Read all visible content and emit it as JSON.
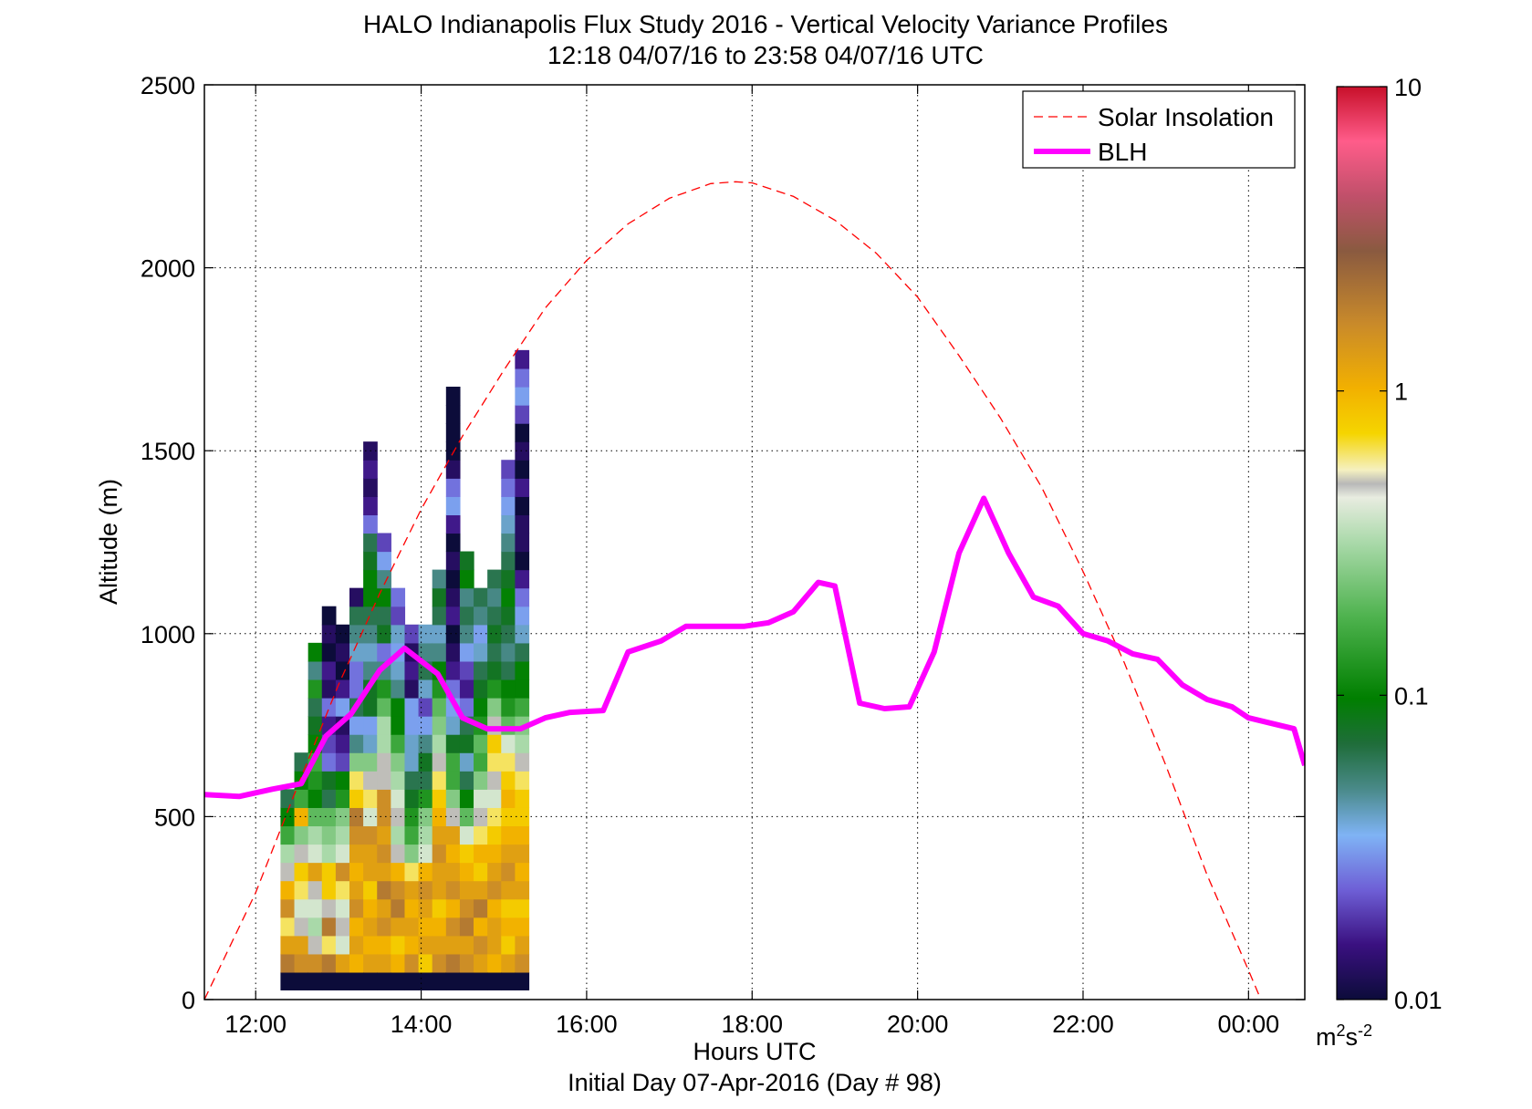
{
  "chart_data": {
    "type": "heatmap",
    "title": "HALO Indianapolis Flux Study 2016 - Vertical Velocity Variance Profiles",
    "subtitle": "12:18 04/07/16 to 23:58 04/07/16  UTC",
    "xlabel": "Hours UTC",
    "xlabel2": "Initial Day 07-Apr-2016 (Day # 98)",
    "ylabel": "Altitude (m)",
    "xlim": [
      11.38,
      24.68
    ],
    "ylim": [
      0,
      2500
    ],
    "x_ticks": [
      12,
      14,
      16,
      18,
      20,
      22,
      24
    ],
    "x_tick_labels": [
      "12:00",
      "14:00",
      "16:00",
      "18:00",
      "20:00",
      "22:00",
      "00:00"
    ],
    "y_ticks": [
      0,
      500,
      1000,
      1500,
      2000,
      2500
    ],
    "y_tick_labels": [
      "0",
      "500",
      "1000",
      "1500",
      "2000",
      "2500"
    ],
    "grid": true,
    "legend_position": "top-right",
    "colorbar": {
      "scale": "log",
      "range": [
        0.01,
        10
      ],
      "ticks": [
        0.01,
        0.1,
        1,
        10
      ],
      "tick_labels": [
        "0.01",
        "0.1",
        "1",
        "10"
      ],
      "unit_base": "m",
      "unit_sup1": "2",
      "unit_mid": "s",
      "unit_sup2": "-2"
    },
    "series": [
      {
        "name": "Solar Insolation",
        "style": "dashed",
        "color": "#ff0000",
        "x": [
          11.38,
          12.0,
          12.5,
          13.0,
          13.5,
          14.0,
          14.5,
          15.0,
          15.5,
          16.0,
          16.5,
          17.0,
          17.5,
          17.8,
          18.0,
          18.5,
          19.0,
          19.5,
          20.0,
          20.5,
          21.0,
          21.5,
          22.0,
          22.5,
          23.0,
          23.5,
          24.0,
          24.15
        ],
        "y": [
          0,
          292,
          580,
          860,
          1110,
          1340,
          1540,
          1720,
          1890,
          2020,
          2120,
          2190,
          2230,
          2235,
          2232,
          2195,
          2130,
          2040,
          1920,
          1760,
          1590,
          1400,
          1170,
          920,
          640,
          340,
          80,
          0
        ]
      },
      {
        "name": "BLH",
        "style": "solid",
        "color": "#ff00ff",
        "x": [
          11.38,
          11.8,
          12.2,
          12.55,
          12.85,
          13.15,
          13.5,
          13.8,
          14.2,
          14.5,
          14.8,
          15.2,
          15.5,
          15.8,
          16.2,
          16.5,
          16.9,
          17.2,
          17.6,
          17.9,
          18.2,
          18.5,
          18.8,
          19.0,
          19.3,
          19.6,
          19.9,
          20.2,
          20.5,
          20.8,
          21.1,
          21.4,
          21.7,
          22.0,
          22.3,
          22.6,
          22.9,
          23.2,
          23.5,
          23.8,
          24.0,
          24.55,
          24.68
        ],
        "y": [
          560,
          555,
          575,
          590,
          720,
          780,
          900,
          960,
          890,
          770,
          740,
          740,
          770,
          785,
          790,
          950,
          980,
          1020,
          1020,
          1020,
          1030,
          1060,
          1140,
          1130,
          810,
          795,
          800,
          950,
          1220,
          1370,
          1220,
          1100,
          1075,
          1000,
          980,
          945,
          930,
          860,
          820,
          800,
          770,
          740,
          640
        ]
      }
    ],
    "heatmap": {
      "x_start": 12.3,
      "x_step": 0.1667,
      "y_start": 75,
      "y_step": 50,
      "units": "log10 of variance (m2 s-2)",
      "base_row_note": "near-surface row ~0.01",
      "columns": [
        [
          0.3,
          0.1,
          -0.2,
          0.2,
          0.0,
          -0.3,
          -0.5,
          -0.8,
          -1.0,
          -1.2
        ],
        [
          0.2,
          0.1,
          -0.3,
          -0.4,
          -0.2,
          -0.1,
          -0.3,
          -0.6,
          0.0,
          -0.8,
          -1.0,
          -1.2
        ],
        [
          0.2,
          -0.3,
          -0.5,
          -0.4,
          -0.3,
          0.1,
          -0.4,
          -0.5,
          -0.7,
          -1.0,
          -0.9,
          -0.8,
          -1.0,
          -1.1,
          -1.2,
          -0.9,
          -1.3,
          -1.0
        ],
        [
          0.3,
          -0.2,
          0.3,
          -0.3,
          -0.1,
          -0.1,
          -0.5,
          -0.6,
          -0.7,
          -1.2,
          -1.1,
          -1.6,
          -1.7,
          -1.8,
          -1.6,
          -1.9,
          -1.8,
          -2.0,
          -1.9,
          -2.0
        ],
        [
          0.1,
          -0.4,
          -0.3,
          -0.4,
          -0.2,
          0.2,
          -0.4,
          -0.5,
          -0.6,
          -0.9,
          -1.0,
          -1.7,
          -1.8,
          -1.9,
          -1.5,
          -1.8,
          -2.0,
          -1.9,
          -2.0
        ],
        [
          0.0,
          0.1,
          0.0,
          0.2,
          0.1,
          0.0,
          0.1,
          0.2,
          0.3,
          -0.1,
          -0.2,
          -0.6,
          -1.3,
          -1.5,
          -1.2,
          -1.6,
          -1.6,
          -1.4,
          -1.3,
          -1.2,
          -1.9
        ],
        [
          0.1,
          0.0,
          0.1,
          0.0,
          -0.1,
          0.1,
          0.1,
          0.2,
          -0.4,
          -0.2,
          -0.3,
          -0.6,
          -1.4,
          -1.5,
          -1.1,
          -1.1,
          -1.3,
          -1.4,
          -1.3,
          -1.2,
          -1.0,
          -1.0,
          -1.1,
          -1.2,
          -1.6,
          -1.8,
          -1.9,
          -1.8,
          -1.9
        ],
        [
          0.1,
          0.0,
          0.2,
          0.1,
          0.3,
          0.1,
          0.2,
          0.1,
          0.2,
          0.2,
          -0.3,
          -0.3,
          -0.5,
          -0.5,
          -0.7,
          -0.9,
          -1.3,
          -1.6,
          -1.1,
          -1.2,
          -1.0,
          -1.3,
          -1.5,
          -1.7
        ],
        [
          0.0,
          -0.1,
          0.1,
          0.3,
          0.2,
          0.0,
          -0.3,
          -0.5,
          -0.3,
          -0.4,
          -0.5,
          -0.6,
          -0.8,
          -1.0,
          -1.0,
          -1.3,
          -1.4,
          -1.5,
          -1.4,
          -1.7,
          -1.6
        ],
        [
          0.2,
          0.0,
          0.1,
          0.0,
          0.1,
          -0.2,
          -0.6,
          -0.8,
          -0.9,
          -1.1,
          -1.2,
          -1.4,
          -1.4,
          -1.5,
          -1.5,
          -1.9,
          -1.8,
          -1.9,
          -1.7
        ],
        [
          -0.1,
          0.1,
          0.0,
          0.1,
          0.2,
          0.0,
          -0.4,
          -0.5,
          -0.6,
          -0.9,
          -1.2,
          -1.1,
          -1.3,
          -1.5,
          -1.7,
          -1.4,
          -1.2,
          -1.3,
          -1.4
        ],
        [
          0.2,
          0.1,
          0.0,
          -0.1,
          0.1,
          0.1,
          0.2,
          0.1,
          0.0,
          -0.1,
          -0.2,
          -0.3,
          -0.5,
          -0.6,
          -0.7,
          -0.9,
          -1.0,
          -1.3,
          -1.4,
          -1.2,
          -1.1,
          -1.3
        ],
        [
          0.3,
          0.1,
          0.2,
          0.0,
          0.2,
          0.1,
          0.0,
          0.1,
          -0.3,
          -0.6,
          -0.8,
          -0.8,
          -1.1,
          -1.4,
          -1.5,
          -1.6,
          -1.8,
          -1.9,
          -2.0,
          -1.8,
          -1.9,
          -2.0,
          -1.9,
          -2.0,
          -1.8,
          -1.5,
          -1.6,
          -1.9,
          -2.0,
          -2.0,
          -2.0,
          -2.0
        ],
        [
          0.2,
          0.1,
          0.3,
          0.2,
          0.1,
          0.0,
          -0.1,
          -0.4,
          -0.7,
          -1.0,
          -1.2,
          -1.4,
          -1.1,
          -1.2,
          -1.6,
          -1.8,
          -1.7,
          -1.5,
          -1.3,
          -1.2,
          -1.3,
          -1.0,
          -1.1
        ],
        [
          0.1,
          0.2,
          0.0,
          0.3,
          0.1,
          -0.1,
          0.0,
          -0.2,
          -0.3,
          -0.4,
          -0.6,
          -0.8,
          -0.7,
          -0.9,
          -1.0,
          -1.1,
          -1.2,
          -1.4,
          -1.5,
          -1.3,
          -1.2
        ],
        [
          0.0,
          0.1,
          0.1,
          0.0,
          0.2,
          0.1,
          0.0,
          -0.1,
          -0.2,
          -0.4,
          -0.3,
          -0.2,
          -0.1,
          -0.3,
          -0.6,
          -0.9,
          -1.1,
          -1.2,
          -1.1,
          -1.2,
          -1.3,
          -1.2
        ],
        [
          0.1,
          -0.1,
          0.0,
          -0.1,
          0.1,
          0.2,
          0.1,
          0.0,
          -0.1,
          0.0,
          -0.1,
          -0.2,
          -0.4,
          -0.7,
          -0.9,
          -1.0,
          -1.2,
          -1.3,
          -1.2,
          -1.1,
          -1.0,
          -1.1,
          -1.2,
          -1.3,
          -1.4,
          -1.5,
          -1.6,
          -1.7
        ],
        [
          0.2,
          0.1,
          0.0,
          -0.1,
          0.1,
          0.0,
          0.1,
          0.0,
          -0.1,
          -0.1,
          -0.2,
          -0.3,
          -0.5,
          -0.6,
          -0.8,
          -1.0,
          -1.0,
          -1.2,
          -1.4,
          -1.5,
          -1.6,
          -1.8,
          -2.0,
          -1.9,
          -1.9,
          -2.0,
          -1.8,
          -2.0,
          -1.9,
          -2.0,
          -1.7,
          -1.5,
          -1.6,
          -1.8
        ]
      ]
    }
  }
}
